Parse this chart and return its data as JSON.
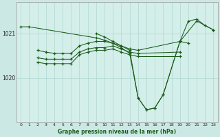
{
  "title": "Graphe pression niveau de la mer (hPa)",
  "bg_color": "#cce8e4",
  "plot_bg_color": "#d4eeea",
  "line_color": "#1a5c1a",
  "grid_color": "#b0d8d0",
  "xlim": [
    -0.5,
    23.5
  ],
  "ylim": [
    1019.0,
    1021.7
  ],
  "yticks": [
    1020,
    1021
  ],
  "xticks": [
    0,
    1,
    2,
    3,
    4,
    5,
    6,
    7,
    8,
    9,
    10,
    11,
    12,
    13,
    14,
    15,
    16,
    17,
    18,
    19,
    20,
    21,
    22,
    23
  ],
  "line1_x": [
    0,
    1,
    9,
    10,
    11,
    12,
    13,
    14,
    15,
    16,
    17,
    19,
    21,
    23
  ],
  "line1_y": [
    1021.15,
    1021.15,
    1020.9,
    1020.85,
    1020.78,
    1020.68,
    1020.55,
    1019.55,
    1019.28,
    1019.32,
    1019.62,
    1020.82,
    1021.28,
    1021.08
  ],
  "line2_x": [
    9,
    10,
    11,
    12,
    13,
    14,
    15,
    16,
    17,
    19,
    20,
    21,
    22,
    23
  ],
  "line2_y": [
    1021.0,
    1020.92,
    1020.82,
    1020.72,
    1020.62,
    1019.55,
    1019.28,
    1019.32,
    1019.62,
    1020.82,
    1021.28,
    1021.32,
    1021.18,
    1021.08
  ],
  "line3_x": [
    2,
    3,
    4,
    5,
    6,
    7,
    8,
    9,
    10,
    11,
    12,
    13,
    14,
    19,
    20
  ],
  "line3_y": [
    1020.62,
    1020.58,
    1020.55,
    1020.55,
    1020.55,
    1020.72,
    1020.78,
    1020.82,
    1020.82,
    1020.78,
    1020.72,
    1020.65,
    1020.62,
    1020.82,
    1020.78
  ],
  "line4_x": [
    2,
    3,
    4,
    5,
    6,
    7,
    8,
    9,
    10,
    11,
    12,
    13,
    14,
    19
  ],
  "line4_y": [
    1020.45,
    1020.42,
    1020.42,
    1020.42,
    1020.42,
    1020.58,
    1020.65,
    1020.68,
    1020.68,
    1020.72,
    1020.65,
    1020.58,
    1020.55,
    1020.58
  ],
  "line5_x": [
    2,
    3,
    4,
    5,
    6,
    7,
    8,
    9,
    10,
    11,
    12,
    13,
    14,
    19
  ],
  "line5_y": [
    1020.35,
    1020.32,
    1020.32,
    1020.32,
    1020.32,
    1020.52,
    1020.58,
    1020.62,
    1020.62,
    1020.65,
    1020.58,
    1020.52,
    1020.48,
    1020.48
  ]
}
